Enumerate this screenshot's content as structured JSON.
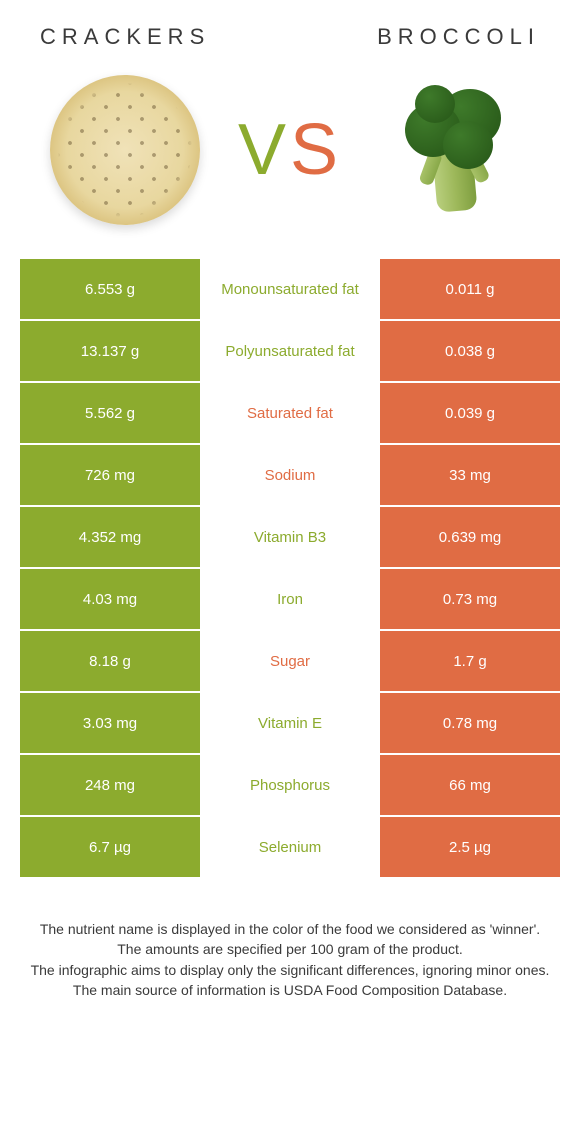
{
  "colors": {
    "green": "#8cab2e",
    "orange": "#e06c44",
    "text": "#3a3a3a",
    "white": "#ffffff"
  },
  "header": {
    "left": "Crackers",
    "right": "Broccoli"
  },
  "vs": {
    "v": "V",
    "s": "S"
  },
  "rows": [
    {
      "left": "6.553 g",
      "label": "Monounsaturated fat",
      "right": "0.011 g",
      "winner": "green"
    },
    {
      "left": "13.137 g",
      "label": "Polyunsaturated fat",
      "right": "0.038 g",
      "winner": "green"
    },
    {
      "left": "5.562 g",
      "label": "Saturated fat",
      "right": "0.039 g",
      "winner": "orange"
    },
    {
      "left": "726 mg",
      "label": "Sodium",
      "right": "33 mg",
      "winner": "orange"
    },
    {
      "left": "4.352 mg",
      "label": "Vitamin B3",
      "right": "0.639 mg",
      "winner": "green"
    },
    {
      "left": "4.03 mg",
      "label": "Iron",
      "right": "0.73 mg",
      "winner": "green"
    },
    {
      "left": "8.18 g",
      "label": "Sugar",
      "right": "1.7 g",
      "winner": "orange"
    },
    {
      "left": "3.03 mg",
      "label": "Vitamin E",
      "right": "0.78 mg",
      "winner": "green"
    },
    {
      "left": "248 mg",
      "label": "Phosphorus",
      "right": "66 mg",
      "winner": "green"
    },
    {
      "left": "6.7 µg",
      "label": "Selenium",
      "right": "2.5 µg",
      "winner": "green"
    }
  ],
  "footer": {
    "l1": "The nutrient name is displayed in the color of the food we considered as 'winner'.",
    "l2": "The amounts are specified per 100 gram of the product.",
    "l3": "The infographic aims to display only the significant differences, ignoring minor ones.",
    "l4": "The main source of information is USDA Food Composition Database."
  }
}
